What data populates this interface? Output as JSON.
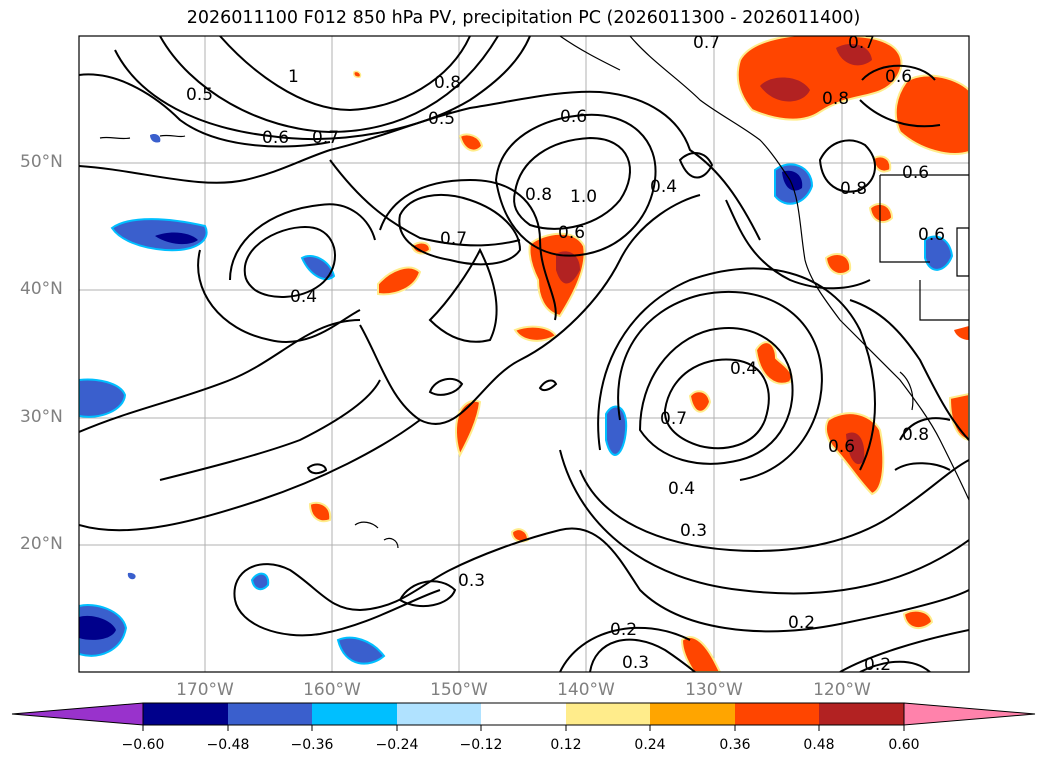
{
  "title": "2026011100 F012 850 hPa PV, precipitation PC (2026011300 - 2026011400)",
  "latitude_labels": [
    "50°N",
    "40°N",
    "30°N",
    "20°N"
  ],
  "longitude_labels": [
    "170°W",
    "160°W",
    "150°W",
    "140°W",
    "130°W",
    "120°W"
  ],
  "contour_labels": [
    "0.7",
    "0.7",
    "0.6",
    "0.5",
    "0.8",
    "0.5",
    "0.6",
    "0.7",
    "1",
    "0.6",
    "0.4",
    "1.0",
    "0.8",
    "0.7",
    "0.4",
    "0.7",
    "0.4",
    "0.3",
    "0.2",
    "0.3",
    "0.3",
    "0.2",
    "0.2",
    "0.6",
    "0.8",
    "0.8",
    "0.6",
    "0.4",
    "0.6",
    "0.8",
    "0.6"
  ],
  "colorbar": {
    "ticks": [
      "−0.60",
      "−0.48",
      "−0.36",
      "−0.24",
      "−0.12",
      "0.12",
      "0.24",
      "0.36",
      "0.48",
      "0.60"
    ],
    "colors": [
      "#9932cc",
      "#00008b",
      "#3a5fcd",
      "#00bfff",
      "#b0e2ff",
      "#ffffff",
      "#ffec8b",
      "#ffa500",
      "#ff4500",
      "#b22222",
      "#ff82ab"
    ]
  }
}
